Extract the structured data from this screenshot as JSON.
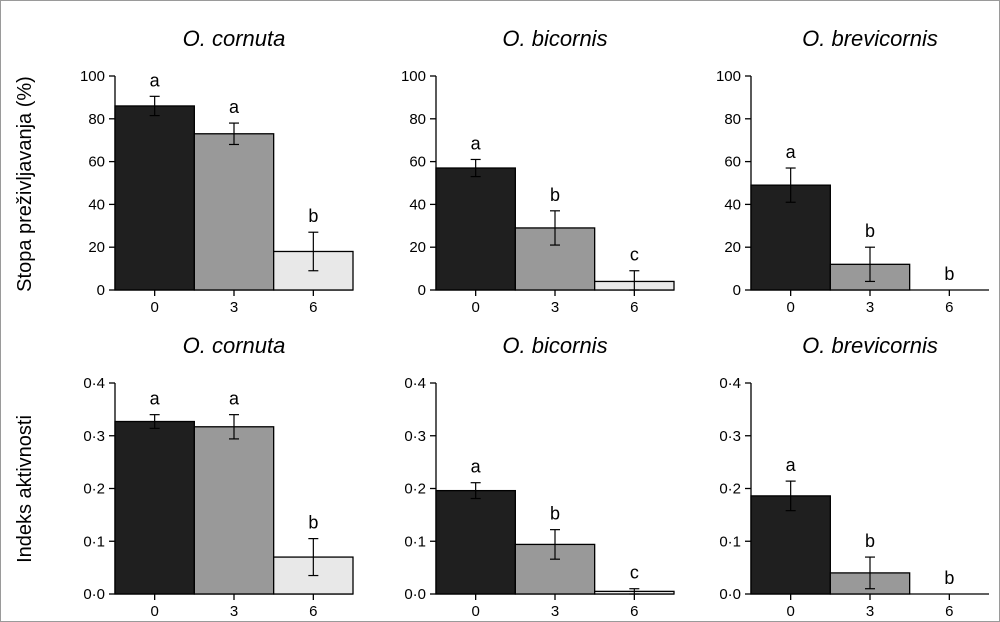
{
  "chart_data": [
    {
      "type": "bar",
      "title": "O. cornuta",
      "ylabel": "Stopa preživljavanja (%)",
      "categories": [
        "0",
        "3",
        "6"
      ],
      "values": [
        86,
        73,
        18
      ],
      "errors": [
        4.5,
        5,
        9
      ],
      "letters": [
        "a",
        "a",
        "b"
      ],
      "ylim": [
        0,
        100
      ],
      "yticks": [
        "0",
        "20",
        "40",
        "60",
        "80",
        "100"
      ],
      "colors": [
        "#1f1f1f",
        "#999999",
        "#e8e8e8"
      ]
    },
    {
      "type": "bar",
      "title": "O. bicornis",
      "ylabel": "",
      "categories": [
        "0",
        "3",
        "6"
      ],
      "values": [
        57,
        29,
        4
      ],
      "errors": [
        4,
        8,
        5
      ],
      "letters": [
        "a",
        "b",
        "c"
      ],
      "ylim": [
        0,
        100
      ],
      "yticks": [
        "0",
        "20",
        "40",
        "60",
        "80",
        "100"
      ],
      "colors": [
        "#1f1f1f",
        "#999999",
        "#e8e8e8"
      ]
    },
    {
      "type": "bar",
      "title": "O. brevicornis",
      "ylabel": "",
      "categories": [
        "0",
        "3",
        "6"
      ],
      "values": [
        49,
        12,
        0
      ],
      "errors": [
        8,
        8,
        0
      ],
      "letters": [
        "a",
        "b",
        "b"
      ],
      "ylim": [
        0,
        100
      ],
      "yticks": [
        "0",
        "20",
        "40",
        "60",
        "80",
        "100"
      ],
      "colors": [
        "#1f1f1f",
        "#999999",
        "#e8e8e8"
      ]
    },
    {
      "type": "bar",
      "title": "O. cornuta",
      "ylabel": "Indeks aktivnosti",
      "categories": [
        "0",
        "3",
        "6"
      ],
      "values": [
        0.327,
        0.317,
        0.07
      ],
      "errors": [
        0.013,
        0.023,
        0.035
      ],
      "letters": [
        "a",
        "a",
        "b"
      ],
      "ylim": [
        0,
        0.4
      ],
      "yticks": [
        "0·0",
        "0·1",
        "0·2",
        "0·3",
        "0·4"
      ],
      "colors": [
        "#1f1f1f",
        "#999999",
        "#e8e8e8"
      ]
    },
    {
      "type": "bar",
      "title": "O. bicornis",
      "ylabel": "",
      "categories": [
        "0",
        "3",
        "6"
      ],
      "values": [
        0.196,
        0.094,
        0.005
      ],
      "errors": [
        0.015,
        0.028,
        0.005
      ],
      "letters": [
        "a",
        "b",
        "c"
      ],
      "ylim": [
        0,
        0.4
      ],
      "yticks": [
        "0·0",
        "0·1",
        "0·2",
        "0·3",
        "0·4"
      ],
      "colors": [
        "#1f1f1f",
        "#999999",
        "#e8e8e8"
      ]
    },
    {
      "type": "bar",
      "title": "O. brevicornis",
      "ylabel": "",
      "categories": [
        "0",
        "3",
        "6"
      ],
      "values": [
        0.186,
        0.04,
        0.0
      ],
      "errors": [
        0.028,
        0.03,
        0.0
      ],
      "letters": [
        "a",
        "b",
        "b"
      ],
      "ylim": [
        0,
        0.4
      ],
      "yticks": [
        "0·0",
        "0·1",
        "0·2",
        "0·3",
        "0·4"
      ],
      "colors": [
        "#1f1f1f",
        "#999999",
        "#e8e8e8"
      ]
    }
  ]
}
